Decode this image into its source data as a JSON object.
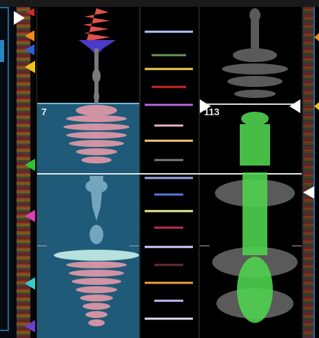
{
  "deck_left": {
    "beat_number": "7"
  },
  "deck_right": {
    "beat_number": "113"
  },
  "icons": {
    "cue_marker": "triangle-cue-icon",
    "loop_marker": "triangle-loop-icon"
  },
  "colors": {
    "background": "#000000",
    "loop_region": "#1f5a78",
    "playhead": "#ffffff",
    "wave_left_top": "#e0504c",
    "wave_left_mid": "#e49aa8",
    "wave_right": "#4fd24f",
    "wave_gray": "#6a6a6a",
    "cue_white": "#ffffff",
    "cue_orange": "#f08a1c",
    "cue_blue": "#3060d8",
    "cue_yellow": "#f2c21c",
    "cue_green": "#2cc43a",
    "cue_magenta": "#d640b0",
    "cue_cyan": "#30d0c8",
    "cue_purple": "#6a40d0"
  }
}
